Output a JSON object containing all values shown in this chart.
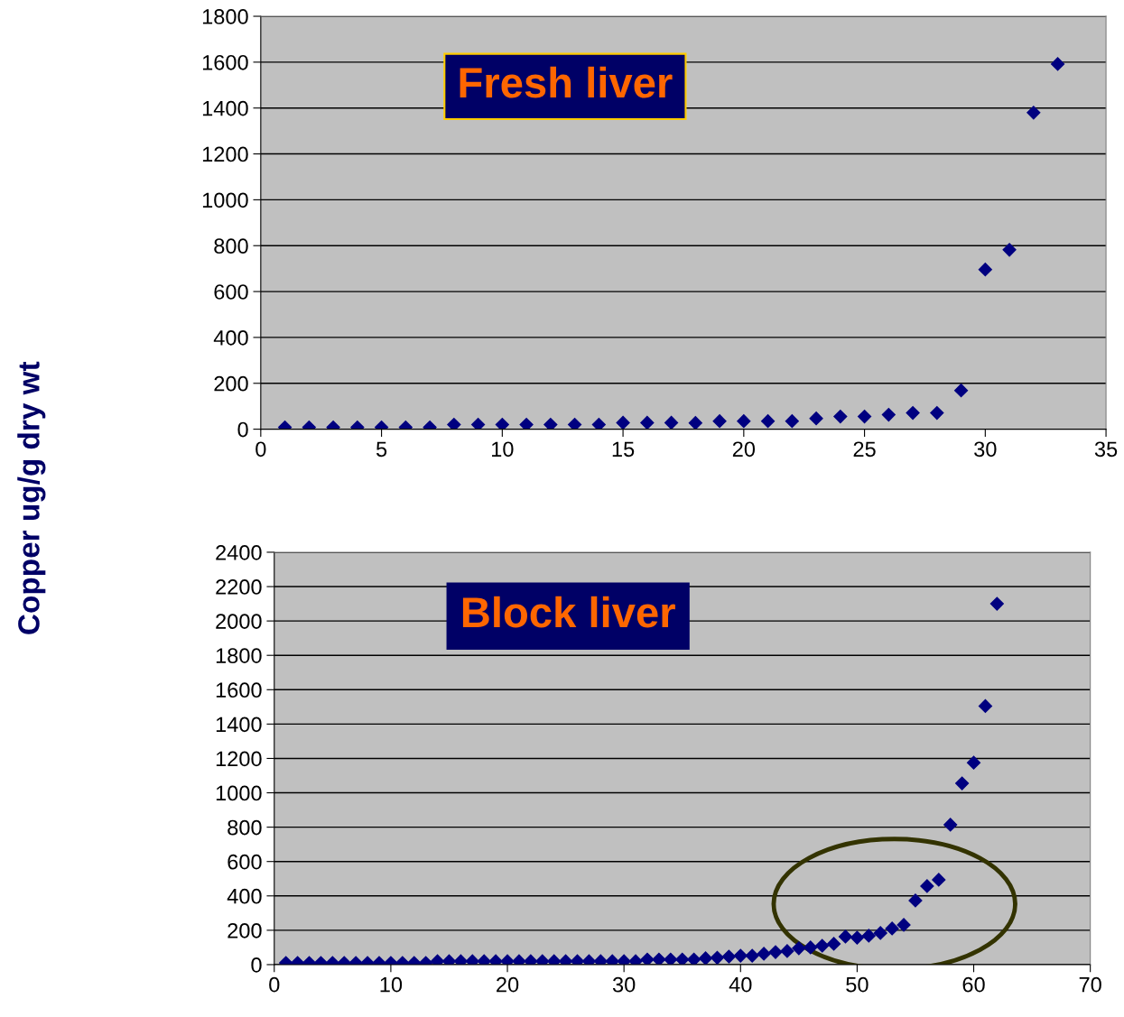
{
  "chart_data": [
    {
      "type": "scatter",
      "title": "Fresh liver",
      "ylabel": "Copper ug/g dry wt",
      "marker": "diamond",
      "grid": "y",
      "xlim": [
        0,
        35
      ],
      "xticks": [
        0,
        5,
        10,
        15,
        20,
        25,
        30,
        35
      ],
      "ylim": [
        0,
        1800
      ],
      "yticks": [
        0,
        200,
        400,
        600,
        800,
        1000,
        1200,
        1400,
        1600,
        1800
      ],
      "x": [
        1,
        2,
        3,
        4,
        5,
        6,
        7,
        8,
        9,
        10,
        11,
        12,
        13,
        14,
        15,
        16,
        17,
        18,
        19,
        20,
        21,
        22,
        23,
        24,
        25,
        26,
        27,
        28,
        29,
        30,
        31,
        32,
        33
      ],
      "series": [
        {
          "color": "#000080",
          "values": [
            8,
            8,
            8,
            8,
            8,
            8,
            8,
            20,
            20,
            20,
            20,
            20,
            20,
            20,
            28,
            28,
            28,
            27,
            35,
            35,
            35,
            35,
            47,
            55,
            55,
            63,
            71,
            71,
            169,
            696,
            782,
            1380,
            1592
          ]
        }
      ]
    },
    {
      "type": "scatter",
      "title": "Block liver",
      "marker": "diamond",
      "grid": "y",
      "xlim": [
        0,
        70
      ],
      "xticks": [
        0,
        10,
        20,
        30,
        40,
        50,
        60,
        70
      ],
      "ylim": [
        0,
        2400
      ],
      "yticks": [
        0,
        200,
        400,
        600,
        800,
        1000,
        1200,
        1400,
        1600,
        1800,
        2000,
        2200,
        2400
      ],
      "x": [
        1,
        2,
        3,
        4,
        5,
        6,
        7,
        8,
        9,
        10,
        11,
        12,
        13,
        14,
        15,
        16,
        17,
        18,
        19,
        20,
        21,
        22,
        23,
        24,
        25,
        26,
        27,
        28,
        29,
        30,
        31,
        32,
        33,
        34,
        35,
        36,
        37,
        38,
        39,
        40,
        41,
        42,
        43,
        44,
        45,
        46,
        47,
        48,
        49,
        50,
        51,
        52,
        53,
        54,
        55,
        56,
        57,
        58,
        59,
        60,
        61,
        62
      ],
      "series": [
        {
          "color": "#000080",
          "values": [
            10,
            10,
            10,
            10,
            10,
            10,
            10,
            10,
            10,
            10,
            10,
            10,
            10,
            20,
            20,
            20,
            20,
            20,
            20,
            20,
            20,
            20,
            20,
            20,
            20,
            20,
            20,
            20,
            20,
            20,
            20,
            30,
            30,
            30,
            30,
            30,
            37,
            40,
            47,
            52,
            52,
            63,
            73,
            79,
            95,
            100,
            110,
            121,
            163,
            157,
            168,
            184,
            210,
            231,
            373,
            457,
            494,
            814,
            1055,
            1175,
            1505,
            2100
          ]
        }
      ]
    }
  ]
}
